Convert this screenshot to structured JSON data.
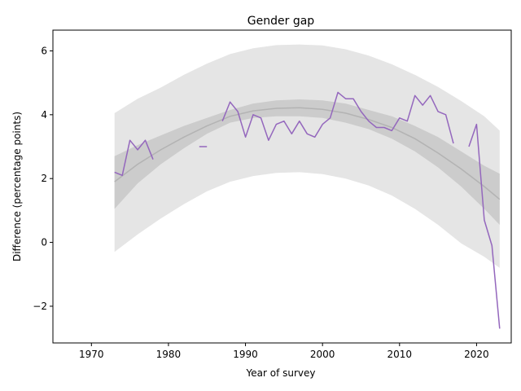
{
  "chart_data": {
    "type": "line",
    "title": "Gender gap",
    "xlabel": "Year of survey",
    "ylabel": "Difference (percentage points)",
    "xlim": [
      1965,
      2024.5
    ],
    "ylim": [
      -3.15,
      6.65
    ],
    "xticks": [
      1970,
      1980,
      1990,
      2000,
      2010,
      2020
    ],
    "yticks": [
      -2,
      0,
      2,
      4,
      6
    ],
    "xtick_labels": [
      "1970",
      "1980",
      "1990",
      "2000",
      "2010",
      "2020"
    ],
    "ytick_labels": [
      "−2",
      "0",
      "2",
      "4",
      "6"
    ],
    "grid": false,
    "colors": {
      "series": "#9467bd",
      "trend": "#b3b3b3",
      "inner_band": "#cccccc",
      "outer_band": "#e5e5e5"
    },
    "series": [
      {
        "segments": [
          [
            [
              1973,
              2.2
            ],
            [
              1974,
              2.1
            ],
            [
              1975,
              3.2
            ],
            [
              1976,
              2.9
            ],
            [
              1977,
              3.2
            ],
            [
              1978,
              2.6
            ]
          ],
          [
            [
              1984,
              3.0
            ],
            [
              1985,
              3.0
            ]
          ],
          [
            [
              1987,
              3.8
            ],
            [
              1988,
              4.4
            ],
            [
              1989,
              4.1
            ],
            [
              1990,
              3.3
            ],
            [
              1991,
              4.0
            ],
            [
              1992,
              3.9
            ],
            [
              1993,
              3.2
            ],
            [
              1994,
              3.7
            ],
            [
              1995,
              3.8
            ],
            [
              1996,
              3.4
            ],
            [
              1997,
              3.8
            ],
            [
              1998,
              3.4
            ],
            [
              1999,
              3.3
            ],
            [
              2000,
              3.7
            ],
            [
              2001,
              3.9
            ],
            [
              2002,
              4.7
            ],
            [
              2003,
              4.5
            ],
            [
              2004,
              4.5
            ],
            [
              2005,
              4.1
            ],
            [
              2006,
              3.8
            ],
            [
              2007,
              3.6
            ],
            [
              2008,
              3.6
            ],
            [
              2009,
              3.5
            ],
            [
              2010,
              3.9
            ],
            [
              2011,
              3.8
            ],
            [
              2012,
              4.6
            ],
            [
              2013,
              4.3
            ],
            [
              2014,
              4.6
            ],
            [
              2015,
              4.1
            ],
            [
              2016,
              4.0
            ],
            [
              2017,
              3.1
            ]
          ],
          [
            [
              2019,
              3.0
            ],
            [
              2020,
              3.7
            ],
            [
              2021,
              0.7
            ],
            [
              2022,
              -0.1
            ],
            [
              2023,
              -2.7
            ]
          ]
        ]
      }
    ],
    "trend": {
      "x": [
        1973,
        1976,
        1979,
        1982,
        1985,
        1988,
        1991,
        1994,
        1997,
        2000,
        2003,
        2006,
        2009,
        2012,
        2015,
        2018,
        2021,
        2023
      ],
      "y": [
        1.9,
        2.45,
        2.9,
        3.3,
        3.65,
        3.95,
        4.12,
        4.2,
        4.22,
        4.17,
        4.05,
        3.85,
        3.6,
        3.25,
        2.8,
        2.3,
        1.75,
        1.35
      ],
      "inner_lower": [
        1.05,
        1.85,
        2.45,
        2.95,
        3.4,
        3.75,
        3.9,
        3.95,
        3.95,
        3.9,
        3.75,
        3.55,
        3.25,
        2.85,
        2.35,
        1.75,
        1.05,
        0.55
      ],
      "inner_upper": [
        2.7,
        3.05,
        3.35,
        3.65,
        3.9,
        4.15,
        4.35,
        4.45,
        4.48,
        4.45,
        4.35,
        4.15,
        3.95,
        3.65,
        3.3,
        2.85,
        2.4,
        2.15
      ],
      "outer_lower": [
        -0.3,
        0.25,
        0.75,
        1.2,
        1.6,
        1.9,
        2.08,
        2.18,
        2.2,
        2.14,
        2.0,
        1.78,
        1.47,
        1.05,
        0.55,
        -0.03,
        -0.45,
        -0.8
      ],
      "outer_upper": [
        4.05,
        4.5,
        4.85,
        5.25,
        5.6,
        5.9,
        6.08,
        6.18,
        6.2,
        6.17,
        6.05,
        5.85,
        5.58,
        5.25,
        4.87,
        4.43,
        3.95,
        3.5
      ]
    }
  }
}
